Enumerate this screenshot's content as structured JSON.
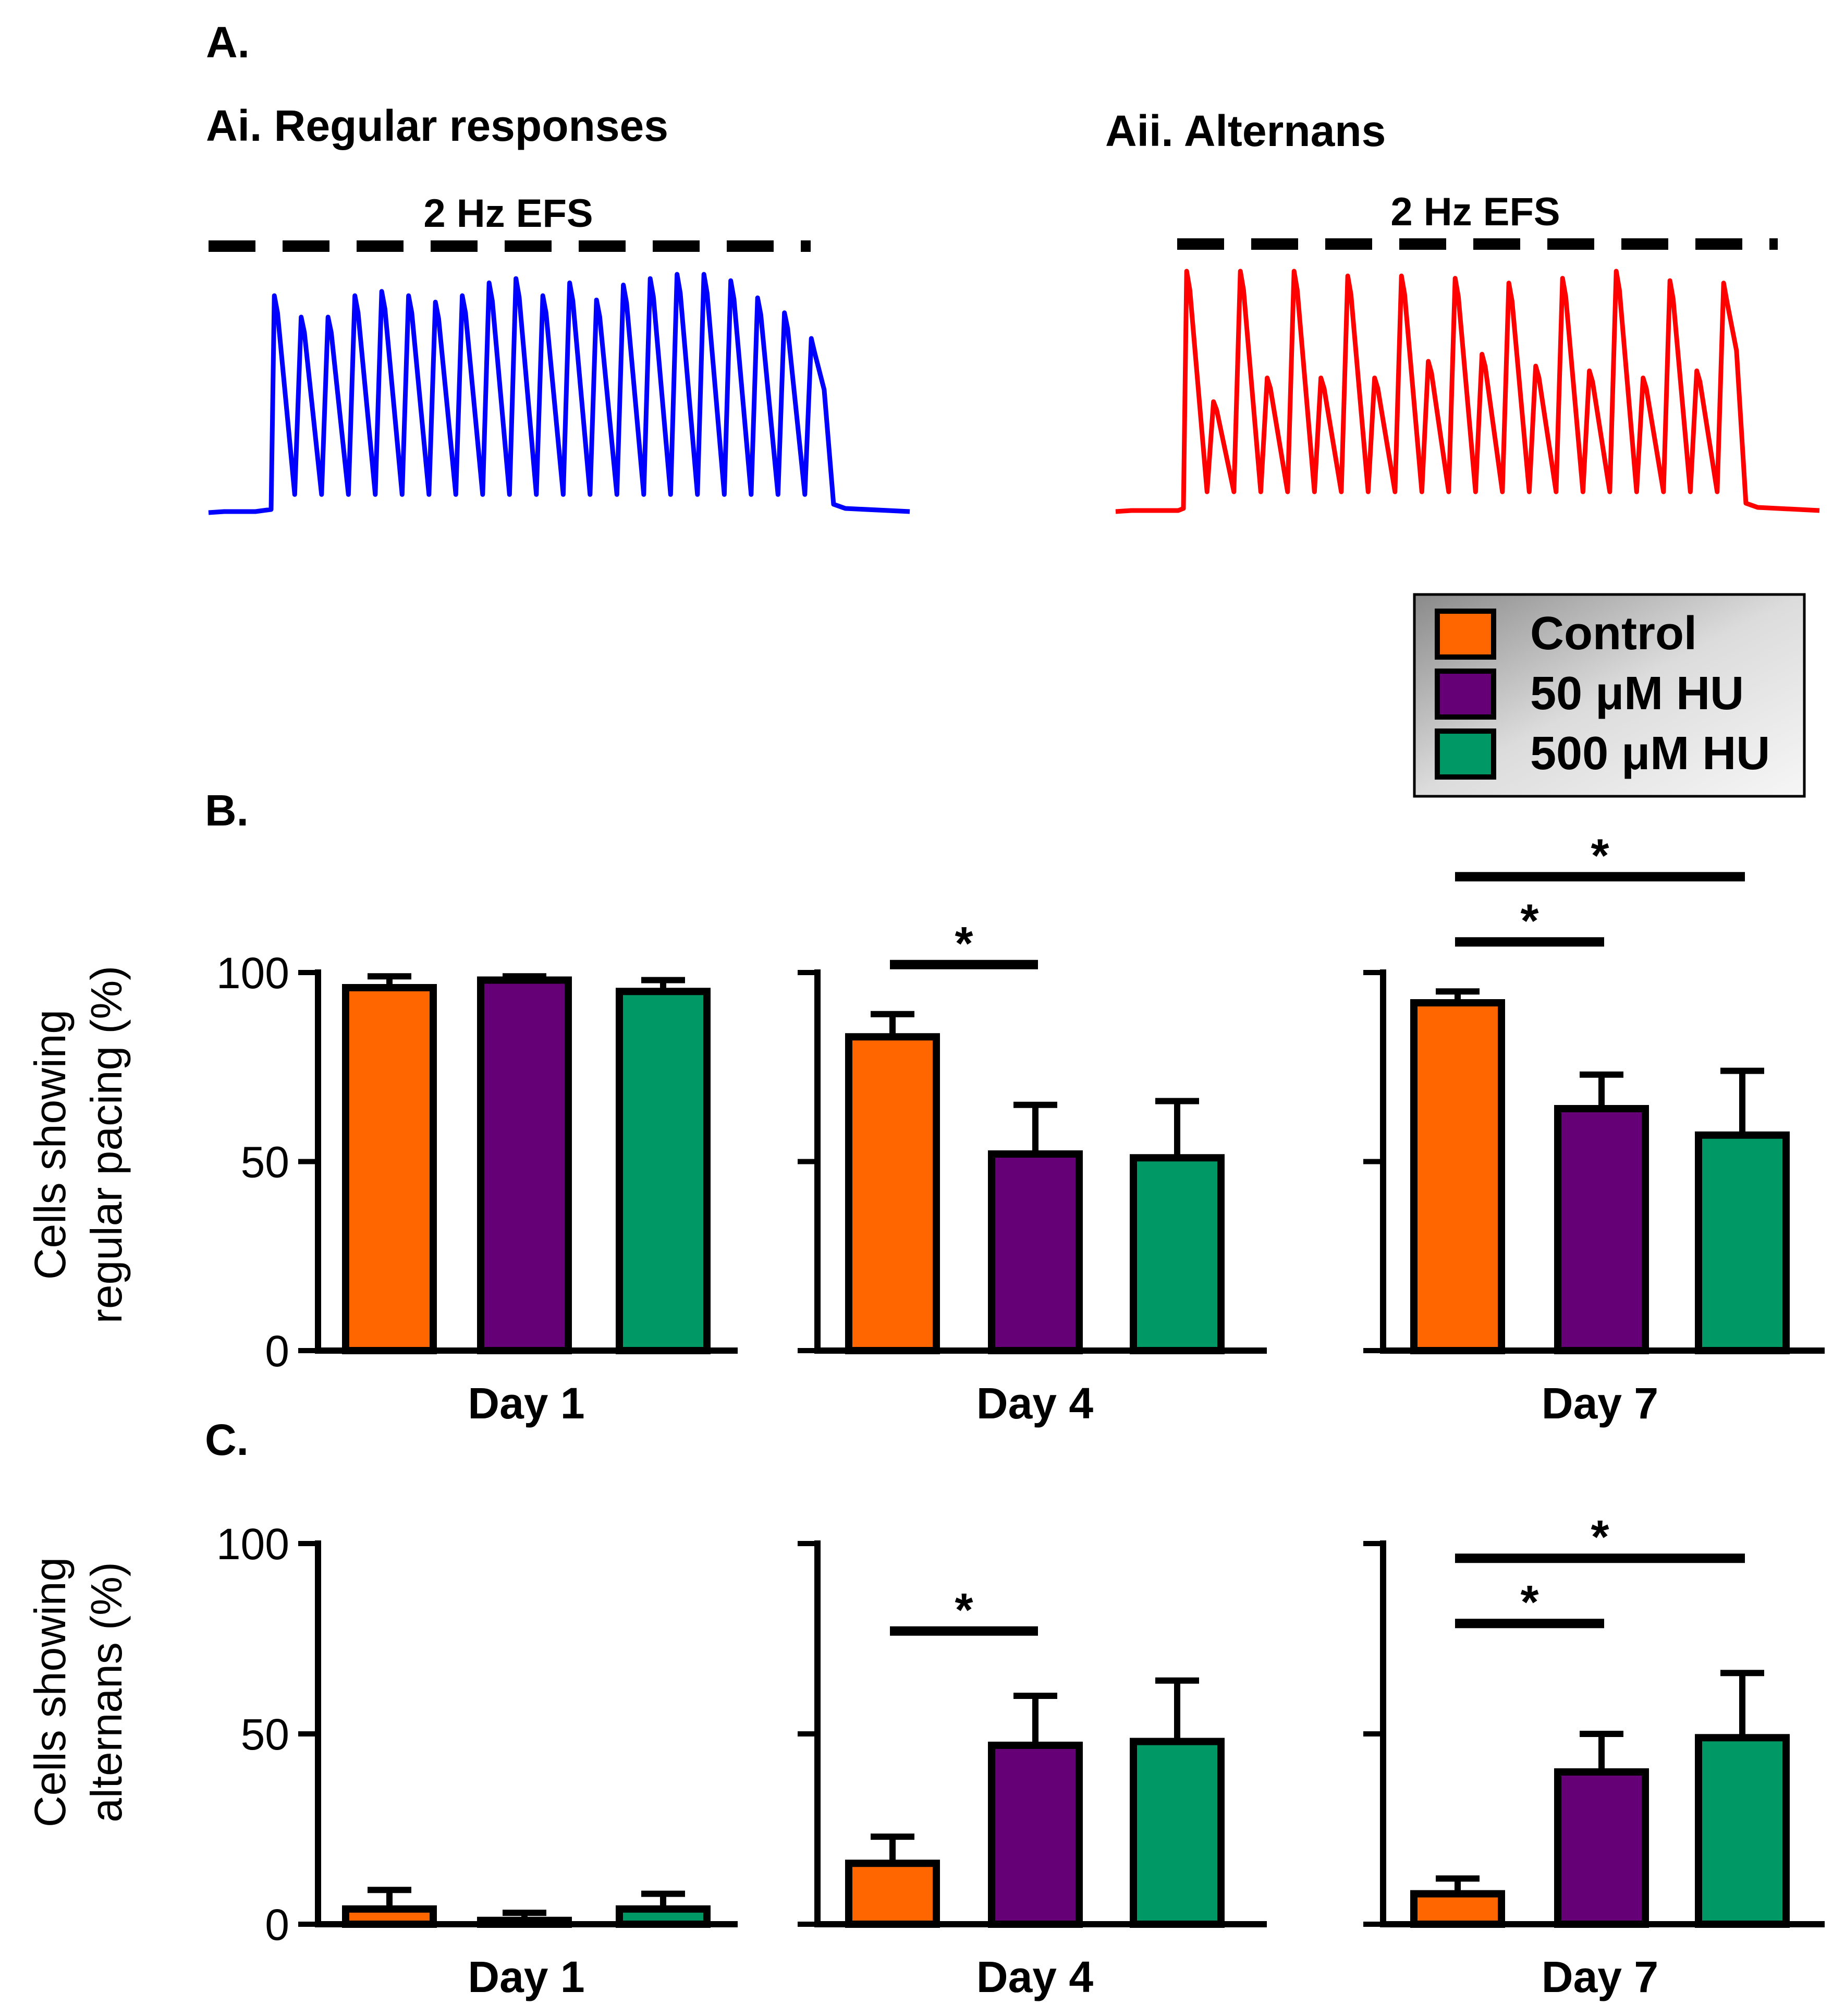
{
  "panel_a": {
    "label": "A.",
    "left": {
      "title": "Ai. Regular responses",
      "stim_label": "2 Hz EFS",
      "color": "#0000ff",
      "peaks": [
        1.0,
        0.9,
        0.9,
        1.0,
        1.02,
        1.0,
        0.97,
        1.0,
        1.06,
        1.08,
        1.0,
        1.06,
        0.98,
        1.05,
        1.08,
        1.1,
        1.1,
        1.07,
        0.99,
        0.92,
        0.8
      ]
    },
    "right": {
      "title": "Aii. Alternans",
      "stim_label": "2 Hz EFS",
      "color": "#ff0000",
      "peaks": [
        1.0,
        0.45,
        1.0,
        0.55,
        1.0,
        0.55,
        0.98,
        0.55,
        0.98,
        0.62,
        0.97,
        0.65,
        0.95,
        0.6,
        0.97,
        0.58,
        1.0,
        0.55,
        0.96,
        0.58,
        0.95
      ]
    }
  },
  "legend": {
    "items": [
      {
        "label": "Control",
        "color": "#ff6600"
      },
      {
        "label": "50 μM HU",
        "color": "#660077"
      },
      {
        "label": "500 μM HU",
        "color": "#009966"
      }
    ]
  },
  "panel_b_label": "B.",
  "panel_c_label": "C.",
  "chart_data": [
    {
      "type": "bar",
      "panel": "B",
      "ylabel_lines": [
        "Cells",
        "showing",
        "regular pacing (%)"
      ],
      "ylabel_line1": "Cells showing",
      "ylabel_line2": "regular pacing (%)",
      "ylim": [
        0,
        100
      ],
      "yticks": [
        0,
        50,
        100
      ],
      "categories": [
        "Control",
        "50 μM HU",
        "500 μM HU"
      ],
      "groups": [
        {
          "label": "Day 1",
          "values": [
            96,
            98,
            95
          ],
          "errors": [
            3,
            1,
            3
          ],
          "sig": []
        },
        {
          "label": "Day 4",
          "values": [
            83,
            52,
            51
          ],
          "errors": [
            6,
            13,
            15
          ],
          "sig": [
            {
              "from": 0,
              "to": 1,
              "label": "*"
            }
          ]
        },
        {
          "label": "Day 7",
          "values": [
            92,
            64,
            57
          ],
          "errors": [
            3,
            9,
            17
          ],
          "sig": [
            {
              "from": 0,
              "to": 1,
              "label": "*"
            },
            {
              "from": 0,
              "to": 2,
              "label": "*"
            }
          ]
        }
      ]
    },
    {
      "type": "bar",
      "panel": "C",
      "ylabel_line1": "Cells showing",
      "ylabel_line2": "alternans (%)",
      "ylim": [
        0,
        100
      ],
      "yticks": [
        0,
        50,
        100
      ],
      "categories": [
        "Control",
        "50 μM HU",
        "500 μM HU"
      ],
      "groups": [
        {
          "label": "Day 1",
          "values": [
            4,
            1,
            4
          ],
          "errors": [
            5,
            2,
            4
          ],
          "sig": []
        },
        {
          "label": "Day 4",
          "values": [
            16,
            47,
            48
          ],
          "errors": [
            7,
            13,
            16
          ],
          "sig": [
            {
              "from": 0,
              "to": 1,
              "label": "*"
            }
          ]
        },
        {
          "label": "Day 7",
          "values": [
            8,
            40,
            49
          ],
          "errors": [
            4,
            10,
            17
          ],
          "sig": [
            {
              "from": 0,
              "to": 1,
              "label": "*"
            },
            {
              "from": 0,
              "to": 2,
              "label": "*"
            }
          ]
        }
      ]
    }
  ]
}
